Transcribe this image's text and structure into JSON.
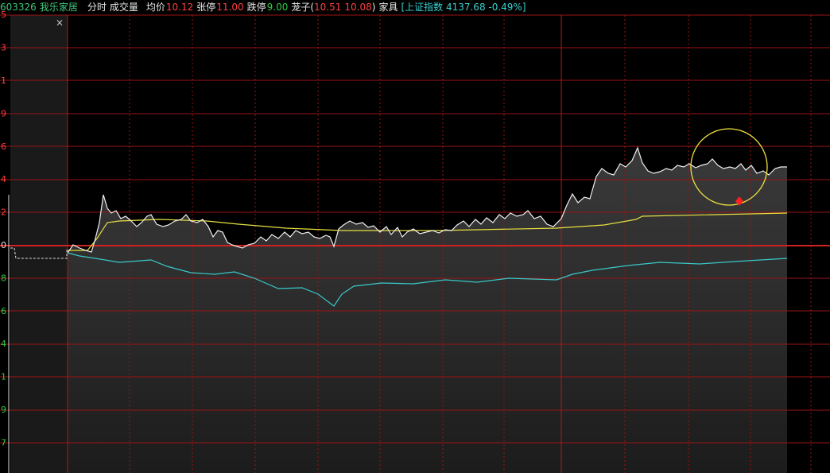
{
  "header": {
    "code": "603326",
    "name": "我乐家居",
    "tabs": [
      "分时",
      "成交量"
    ],
    "avg_label": "均价",
    "avg_value": "10.12",
    "limit_up_label": "张停",
    "limit_up_value": "11.00",
    "limit_down_label": "跌停",
    "limit_down_value": "9.00",
    "cage_label": "茏子(",
    "cage_high": "10.51",
    "cage_low": "10.08",
    "cage_close": ")",
    "sector": "家具",
    "index": "[上证指数 4137.68 -0.49%]"
  },
  "price_axis": {
    "upper_labels": [
      "5",
      "3",
      "1",
      "9",
      "6",
      "4",
      "2"
    ],
    "zero_label": "0",
    "lower_labels": [
      "8",
      "6",
      "4",
      "1",
      "9",
      "7"
    ]
  },
  "close_button": "×"
}
